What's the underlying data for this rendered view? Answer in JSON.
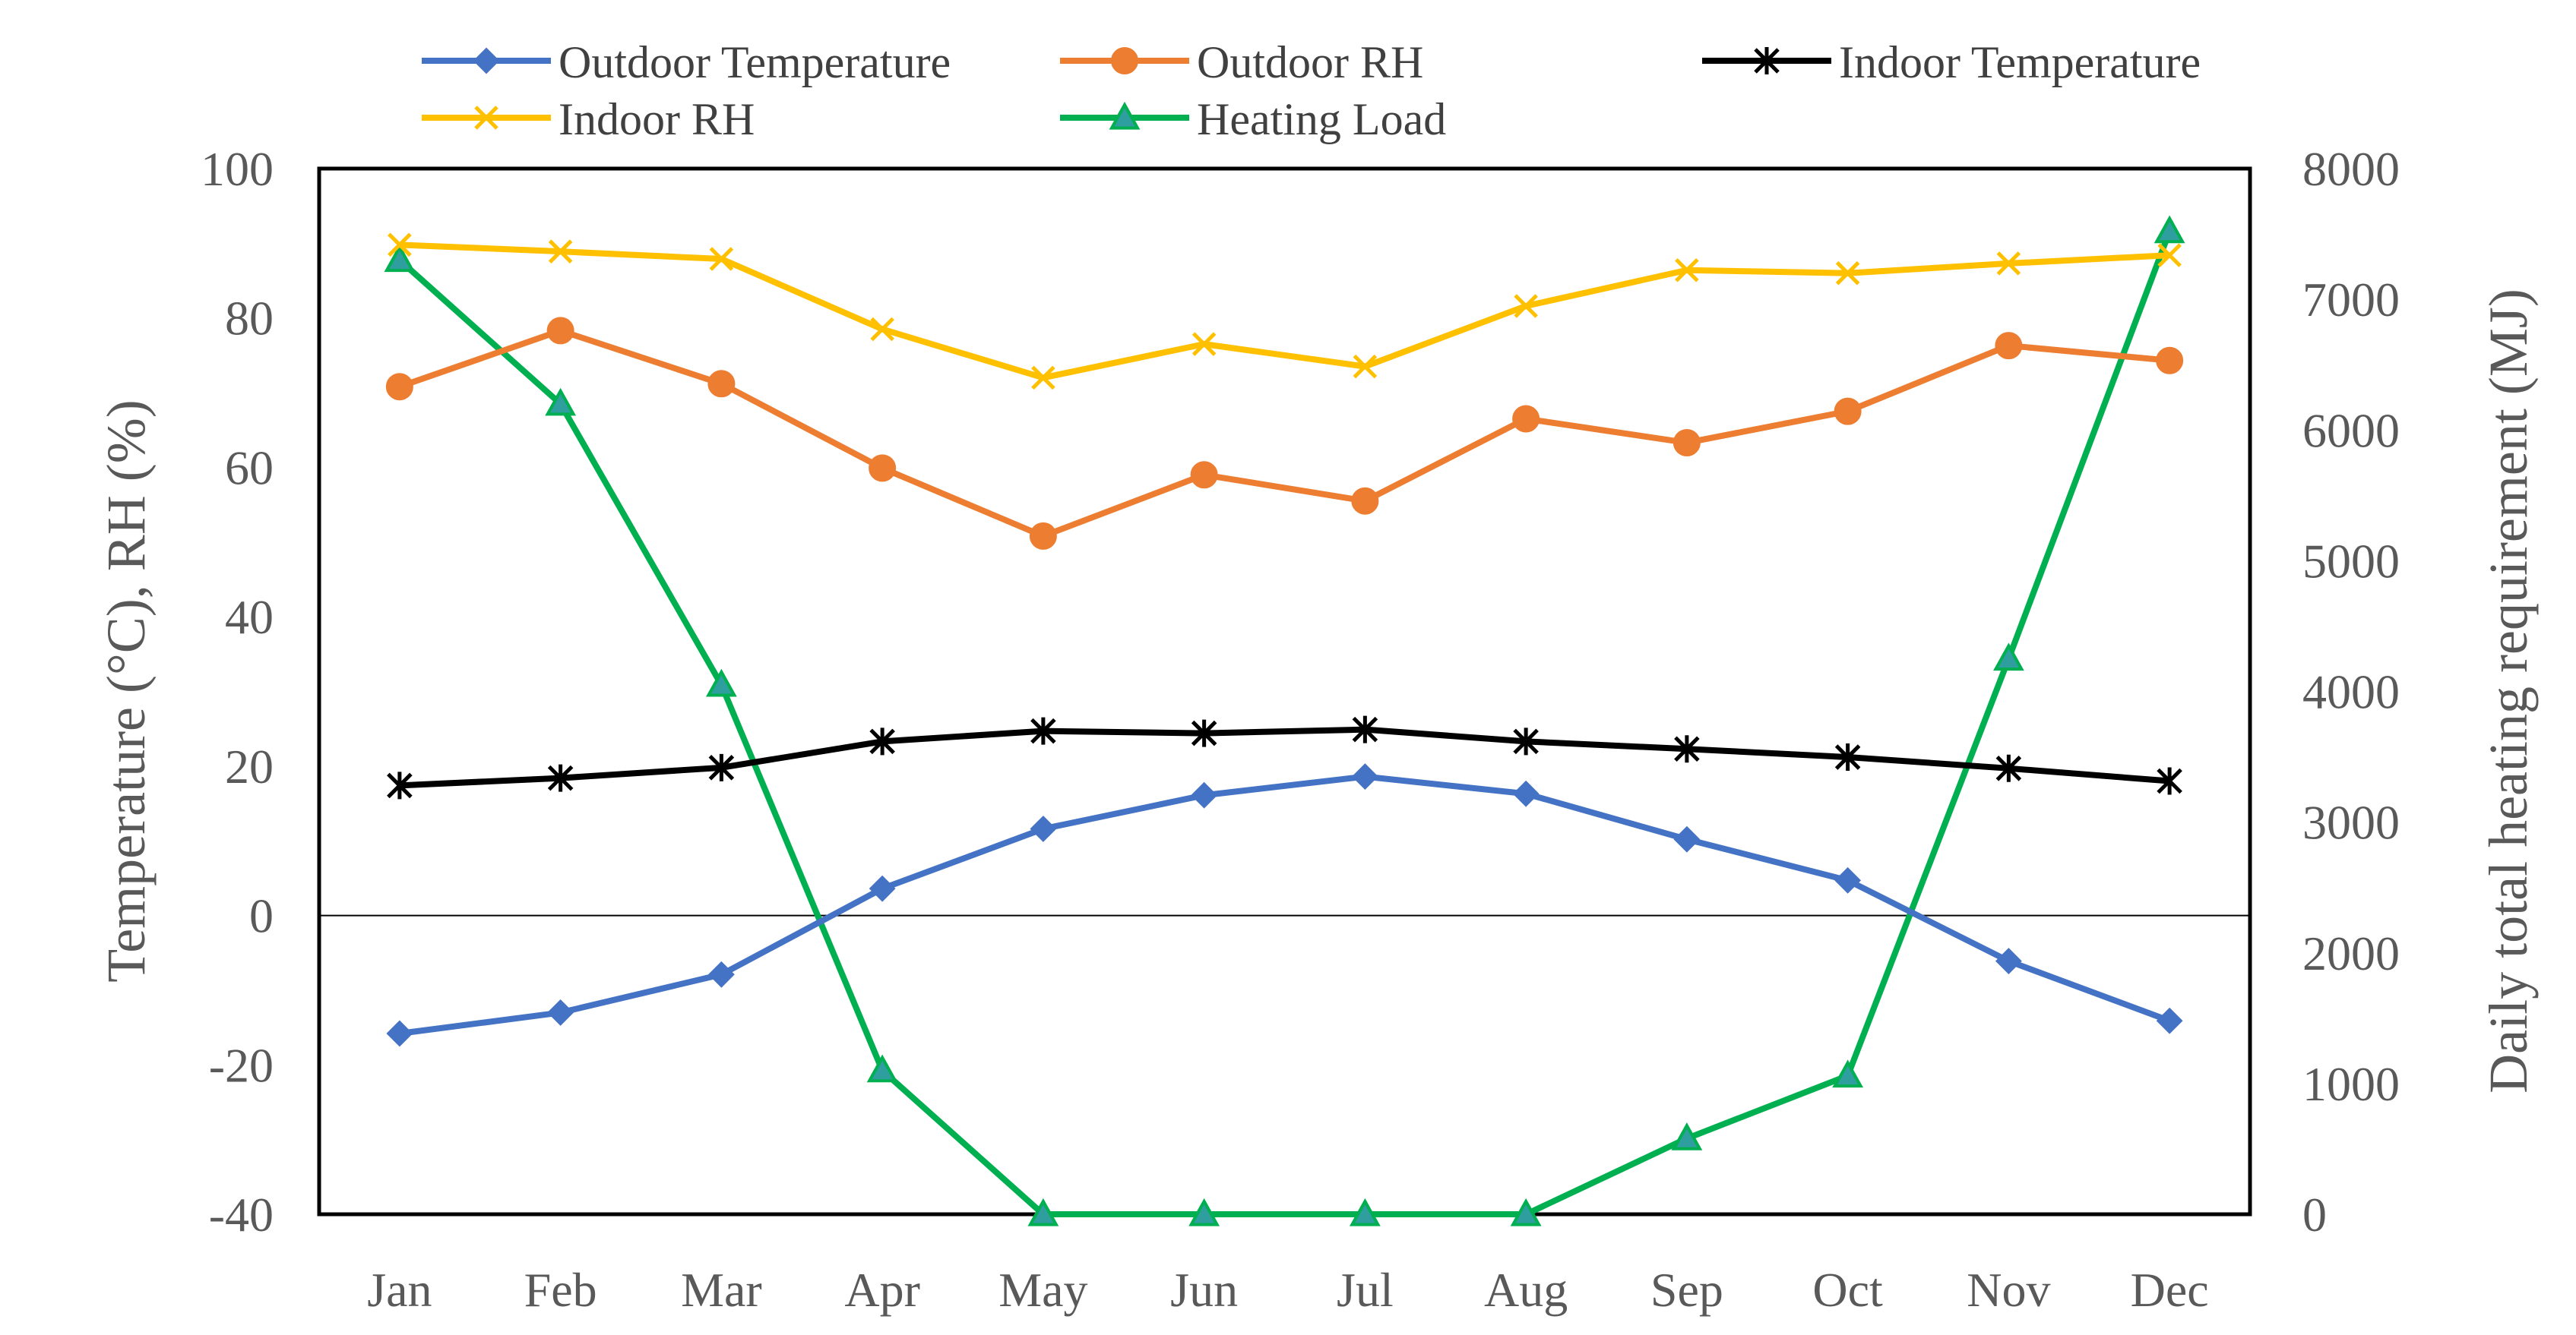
{
  "chart_data": {
    "type": "line",
    "categories": [
      "Jan",
      "Feb",
      "Mar",
      "Apr",
      "May",
      "Jun",
      "Jul",
      "Aug",
      "Sep",
      "Oct",
      "Nov",
      "Dec"
    ],
    "ylabel": "Temperature (°C), RH (%)",
    "y2label": "Daily total heating requirement (MJ)",
    "ylim": [
      -40,
      100
    ],
    "y2lim": [
      0,
      8000
    ],
    "yticks": [
      "100",
      "80",
      "60",
      "40",
      "20",
      "0",
      "-20",
      "-40"
    ],
    "y2ticks": [
      "8000",
      "7000",
      "6000",
      "5000",
      "4000",
      "3000",
      "2000",
      "1000",
      "0"
    ],
    "grid": false,
    "legend_position": "top",
    "series": [
      {
        "name": "Outdoor Temperature",
        "axis": "left",
        "color": "#4472C4",
        "marker": "diamond",
        "values": [
          -15.8,
          -13.0,
          -7.9,
          3.6,
          11.6,
          16.1,
          18.6,
          16.3,
          10.2,
          4.7,
          -6.1,
          -14.1
        ]
      },
      {
        "name": "Outdoor RH",
        "axis": "left",
        "color": "#ED7D31",
        "marker": "circle",
        "values": [
          70.8,
          78.3,
          71.2,
          59.9,
          50.8,
          59.0,
          55.5,
          66.5,
          63.3,
          67.5,
          76.3,
          74.3
        ]
      },
      {
        "name": "Indoor Temperature",
        "axis": "left",
        "color": "#000000",
        "marker": "star",
        "values": [
          17.4,
          18.4,
          19.8,
          23.3,
          24.7,
          24.4,
          24.9,
          23.3,
          22.3,
          21.2,
          19.7,
          18.0
        ]
      },
      {
        "name": "Indoor RH",
        "axis": "left",
        "color": "#FFC000",
        "marker": "x",
        "values": [
          89.8,
          88.9,
          87.9,
          78.5,
          72.0,
          76.5,
          73.5,
          81.6,
          86.4,
          86.0,
          87.3,
          88.4
        ]
      },
      {
        "name": "Heating Load",
        "axis": "right",
        "color": "#00B050",
        "marker": "triangle",
        "values": [
          7300,
          6200,
          4050,
          1100,
          0,
          0,
          0,
          0,
          580,
          1060,
          4250,
          7520
        ]
      }
    ]
  }
}
